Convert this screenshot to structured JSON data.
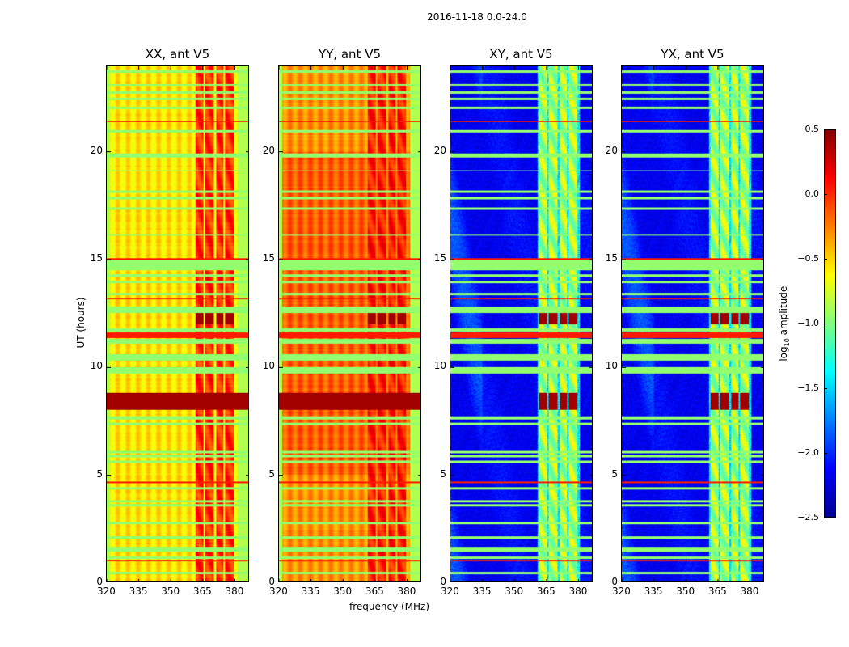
{
  "chart_data": {
    "type": "heatmap",
    "suptitle": "2016-11-18 0.0-24.0",
    "xlabel": "frequency (MHz)",
    "ylabel": "UT (hours)",
    "xlim": [
      320,
      387
    ],
    "ylim": [
      0,
      24
    ],
    "xticks": [
      "320",
      "335",
      "350",
      "365",
      "380"
    ],
    "yticks": [
      "0",
      "5",
      "10",
      "15",
      "20"
    ],
    "colorbar": {
      "label_prefix": "log",
      "label_sub": "10",
      "label_suffix": " amplitude",
      "range": [
        -2.5,
        0.5
      ],
      "ticks": [
        "0.5",
        "0.0",
        "−0.5",
        "−1.0",
        "−1.5",
        "−2.0",
        "−2.5"
      ],
      "colormap": "jet"
    },
    "panels": [
      {
        "title": "XX, ant V5",
        "base": -0.55,
        "hot": -0.05,
        "kind": "auto"
      },
      {
        "title": "YY, ant V5",
        "base": -0.3,
        "hot": 0.0,
        "kind": "auto"
      },
      {
        "title": "XY, ant V5",
        "base": -2.3,
        "hot": -0.95,
        "kind": "cross"
      },
      {
        "title": "YX, ant V5",
        "base": -2.3,
        "hot": -0.95,
        "kind": "cross"
      }
    ],
    "hot_bands_mhz": [
      [
        362,
        365.5
      ],
      [
        366.5,
        370.5
      ],
      [
        371.5,
        375
      ],
      [
        376,
        380
      ]
    ],
    "flagged_rows_hours": [
      [
        0.35,
        0.45
      ],
      [
        1.05,
        1.2
      ],
      [
        1.4,
        1.65
      ],
      [
        2.0,
        2.1
      ],
      [
        2.7,
        2.8
      ],
      [
        3.5,
        3.6
      ],
      [
        3.7,
        3.8
      ],
      [
        4.3,
        4.4
      ],
      [
        5.55,
        5.65
      ],
      [
        5.8,
        5.9
      ],
      [
        6.0,
        6.1
      ],
      [
        7.3,
        7.4
      ],
      [
        7.55,
        7.7
      ],
      [
        9.7,
        10.0
      ],
      [
        10.3,
        10.6
      ],
      [
        11.1,
        11.3
      ],
      [
        11.65,
        11.8
      ],
      [
        12.5,
        12.8
      ],
      [
        13.35,
        13.45
      ],
      [
        13.9,
        14.0
      ],
      [
        14.2,
        14.3
      ],
      [
        14.5,
        15.0
      ],
      [
        16.1,
        16.2
      ],
      [
        17.3,
        17.4
      ],
      [
        17.8,
        17.9
      ],
      [
        18.1,
        18.2
      ],
      [
        19.1,
        19.15
      ],
      [
        19.75,
        19.95
      ],
      [
        20.9,
        21.0
      ],
      [
        22.0,
        22.1
      ],
      [
        22.4,
        22.5
      ],
      [
        22.7,
        22.8
      ],
      [
        23.1,
        23.15
      ],
      [
        23.7,
        23.8
      ]
    ],
    "red_rows_hours": [
      [
        0.95,
        1.0
      ],
      [
        4.6,
        4.65
      ],
      [
        11.35,
        11.6
      ],
      [
        13.15,
        13.2
      ],
      [
        15.0,
        15.05
      ],
      [
        21.4,
        21.45
      ]
    ],
    "strong_rows_hours": [
      [
        8.0,
        8.8
      ],
      [
        12.0,
        12.5
      ]
    ],
    "flagged_value": -0.95,
    "red_value": 0.05,
    "strong_value": 0.4
  }
}
